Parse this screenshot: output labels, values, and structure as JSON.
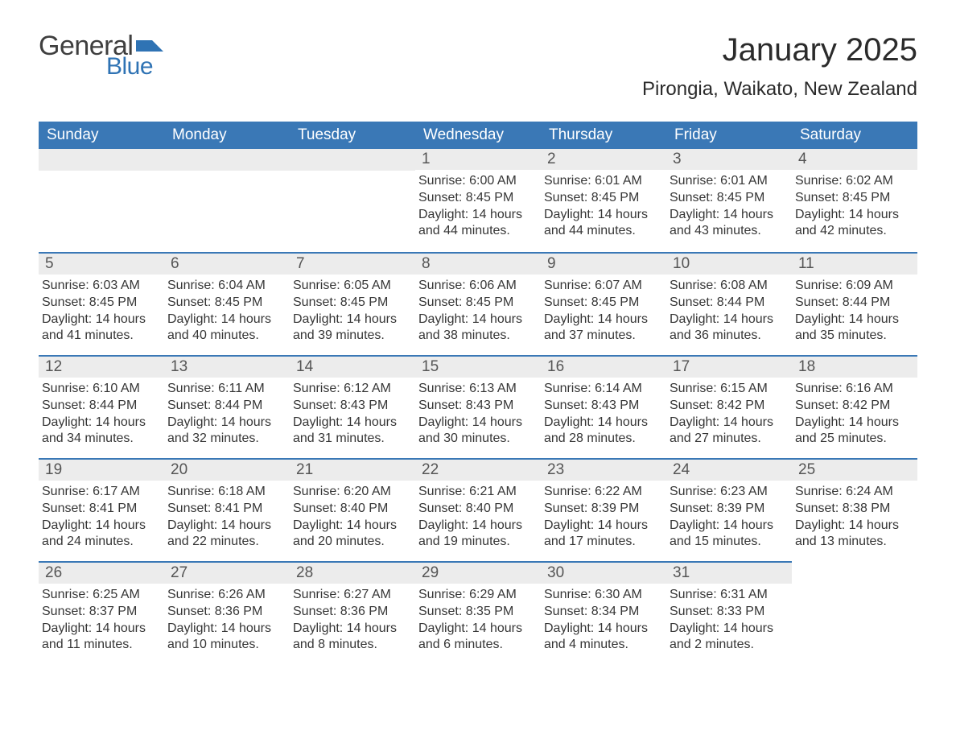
{
  "logo": {
    "text1": "General",
    "text2": "Blue",
    "flag_color": "#2f73b4",
    "text1_color": "#3f3f3f"
  },
  "title": "January 2025",
  "subtitle": "Pirongia, Waikato, New Zealand",
  "colors": {
    "header_bg": "#3a78b6",
    "header_text": "#ffffff",
    "daynum_bg": "#ececec",
    "daynum_border": "#3a78b6",
    "body_text": "#363636",
    "page_bg": "#ffffff"
  },
  "fonts": {
    "title_size": 40,
    "subtitle_size": 24,
    "weekday_size": 19,
    "daynum_size": 19,
    "body_size": 16
  },
  "weekdays": [
    "Sunday",
    "Monday",
    "Tuesday",
    "Wednesday",
    "Thursday",
    "Friday",
    "Saturday"
  ],
  "layout": {
    "first_weekday_index": 3,
    "days_in_month": 31
  },
  "days": [
    {
      "n": 1,
      "sunrise": "6:00 AM",
      "sunset": "8:45 PM",
      "daylight": "14 hours and 44 minutes."
    },
    {
      "n": 2,
      "sunrise": "6:01 AM",
      "sunset": "8:45 PM",
      "daylight": "14 hours and 44 minutes."
    },
    {
      "n": 3,
      "sunrise": "6:01 AM",
      "sunset": "8:45 PM",
      "daylight": "14 hours and 43 minutes."
    },
    {
      "n": 4,
      "sunrise": "6:02 AM",
      "sunset": "8:45 PM",
      "daylight": "14 hours and 42 minutes."
    },
    {
      "n": 5,
      "sunrise": "6:03 AM",
      "sunset": "8:45 PM",
      "daylight": "14 hours and 41 minutes."
    },
    {
      "n": 6,
      "sunrise": "6:04 AM",
      "sunset": "8:45 PM",
      "daylight": "14 hours and 40 minutes."
    },
    {
      "n": 7,
      "sunrise": "6:05 AM",
      "sunset": "8:45 PM",
      "daylight": "14 hours and 39 minutes."
    },
    {
      "n": 8,
      "sunrise": "6:06 AM",
      "sunset": "8:45 PM",
      "daylight": "14 hours and 38 minutes."
    },
    {
      "n": 9,
      "sunrise": "6:07 AM",
      "sunset": "8:45 PM",
      "daylight": "14 hours and 37 minutes."
    },
    {
      "n": 10,
      "sunrise": "6:08 AM",
      "sunset": "8:44 PM",
      "daylight": "14 hours and 36 minutes."
    },
    {
      "n": 11,
      "sunrise": "6:09 AM",
      "sunset": "8:44 PM",
      "daylight": "14 hours and 35 minutes."
    },
    {
      "n": 12,
      "sunrise": "6:10 AM",
      "sunset": "8:44 PM",
      "daylight": "14 hours and 34 minutes."
    },
    {
      "n": 13,
      "sunrise": "6:11 AM",
      "sunset": "8:44 PM",
      "daylight": "14 hours and 32 minutes."
    },
    {
      "n": 14,
      "sunrise": "6:12 AM",
      "sunset": "8:43 PM",
      "daylight": "14 hours and 31 minutes."
    },
    {
      "n": 15,
      "sunrise": "6:13 AM",
      "sunset": "8:43 PM",
      "daylight": "14 hours and 30 minutes."
    },
    {
      "n": 16,
      "sunrise": "6:14 AM",
      "sunset": "8:43 PM",
      "daylight": "14 hours and 28 minutes."
    },
    {
      "n": 17,
      "sunrise": "6:15 AM",
      "sunset": "8:42 PM",
      "daylight": "14 hours and 27 minutes."
    },
    {
      "n": 18,
      "sunrise": "6:16 AM",
      "sunset": "8:42 PM",
      "daylight": "14 hours and 25 minutes."
    },
    {
      "n": 19,
      "sunrise": "6:17 AM",
      "sunset": "8:41 PM",
      "daylight": "14 hours and 24 minutes."
    },
    {
      "n": 20,
      "sunrise": "6:18 AM",
      "sunset": "8:41 PM",
      "daylight": "14 hours and 22 minutes."
    },
    {
      "n": 21,
      "sunrise": "6:20 AM",
      "sunset": "8:40 PM",
      "daylight": "14 hours and 20 minutes."
    },
    {
      "n": 22,
      "sunrise": "6:21 AM",
      "sunset": "8:40 PM",
      "daylight": "14 hours and 19 minutes."
    },
    {
      "n": 23,
      "sunrise": "6:22 AM",
      "sunset": "8:39 PM",
      "daylight": "14 hours and 17 minutes."
    },
    {
      "n": 24,
      "sunrise": "6:23 AM",
      "sunset": "8:39 PM",
      "daylight": "14 hours and 15 minutes."
    },
    {
      "n": 25,
      "sunrise": "6:24 AM",
      "sunset": "8:38 PM",
      "daylight": "14 hours and 13 minutes."
    },
    {
      "n": 26,
      "sunrise": "6:25 AM",
      "sunset": "8:37 PM",
      "daylight": "14 hours and 11 minutes."
    },
    {
      "n": 27,
      "sunrise": "6:26 AM",
      "sunset": "8:36 PM",
      "daylight": "14 hours and 10 minutes."
    },
    {
      "n": 28,
      "sunrise": "6:27 AM",
      "sunset": "8:36 PM",
      "daylight": "14 hours and 8 minutes."
    },
    {
      "n": 29,
      "sunrise": "6:29 AM",
      "sunset": "8:35 PM",
      "daylight": "14 hours and 6 minutes."
    },
    {
      "n": 30,
      "sunrise": "6:30 AM",
      "sunset": "8:34 PM",
      "daylight": "14 hours and 4 minutes."
    },
    {
      "n": 31,
      "sunrise": "6:31 AM",
      "sunset": "8:33 PM",
      "daylight": "14 hours and 2 minutes."
    }
  ],
  "labels": {
    "sunrise": "Sunrise: ",
    "sunset": "Sunset: ",
    "daylight": "Daylight: "
  }
}
